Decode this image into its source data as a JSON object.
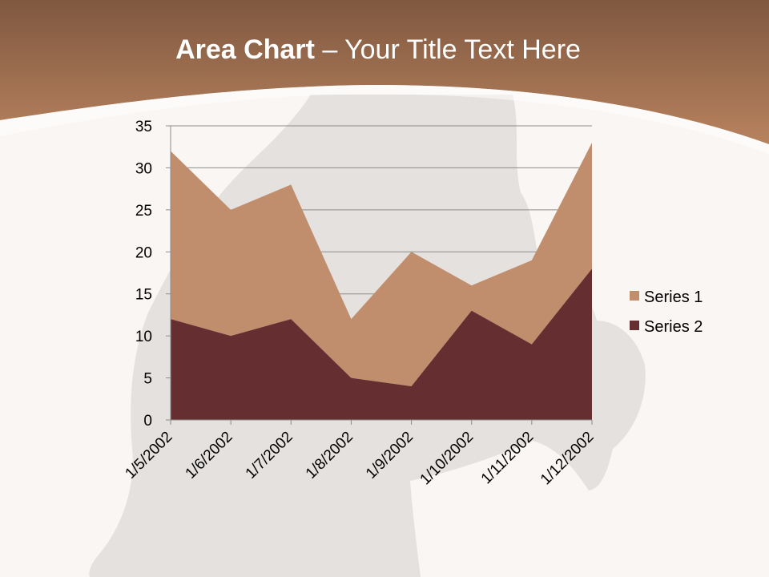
{
  "slide": {
    "title_bold": "Area Chart",
    "title_rest": " – Your Title Text Here"
  },
  "colors": {
    "header_top": "#7f5840",
    "header_bottom": "#b8825e",
    "background": "#faf6f3",
    "series_1": "#c08e6c",
    "series_2": "#652f31",
    "gridline": "#8c8c8c",
    "silhouette": "#534a47"
  },
  "chart_data": {
    "type": "area",
    "stacked": true,
    "title": "",
    "xlabel": "",
    "ylabel": "",
    "categories": [
      "1/5/2002",
      "1/6/2002",
      "1/7/2002",
      "1/8/2002",
      "1/9/2002",
      "1/10/2002",
      "1/11/2002",
      "1/12/2002"
    ],
    "series": [
      {
        "name": "Series 1",
        "values": [
          20,
          15,
          16,
          7,
          16,
          3,
          10,
          15
        ]
      },
      {
        "name": "Series 2",
        "values": [
          12,
          10,
          12,
          5,
          4,
          13,
          9,
          18
        ]
      }
    ],
    "ylim": [
      0,
      35
    ],
    "yticks": [
      0,
      5,
      10,
      15,
      20,
      25,
      30,
      35
    ],
    "grid": true,
    "legend": "right"
  }
}
